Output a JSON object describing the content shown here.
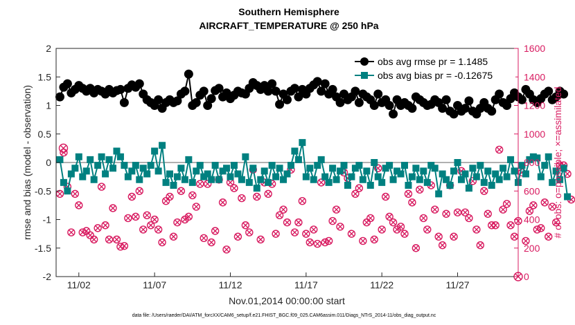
{
  "chart_data": {
    "type": "line",
    "title": "Southern Hemisphere",
    "subtitle": "AIRCRAFT_TEMPERATURE @ 250 hPa",
    "xlabel": "Nov.01,2014 00:00:00 start",
    "ylabel": "rmse and bias (model - observation)",
    "y2label": "# of obs: o=possible; ×=assimilated",
    "xlim": [
      0.5,
      31.0
    ],
    "ylim": [
      -2,
      2
    ],
    "y2lim": [
      0,
      1600
    ],
    "x_tick_labels": [
      "11/02",
      "11/07",
      "11/12",
      "11/17",
      "11/22",
      "11/27"
    ],
    "x_tick_values": [
      2,
      7,
      12,
      17,
      22,
      27
    ],
    "y_tick_values": [
      -2,
      -1.5,
      -1,
      -0.5,
      0,
      0.5,
      1,
      1.5,
      2
    ],
    "y_tick_labels": [
      "-2",
      "-1.5",
      "-1",
      "-0.5",
      "0",
      "0.5",
      "1",
      "1.5",
      "2"
    ],
    "y2_tick_values": [
      0,
      200,
      400,
      600,
      800,
      1000,
      1200,
      1400,
      1600
    ],
    "y2_tick_labels": [
      "0",
      "200",
      "400",
      "600",
      "800",
      "1000",
      "1200",
      "1400",
      "1600"
    ],
    "legend_position": "top-right",
    "grid": false,
    "zero_line": 0,
    "colors": {
      "rmse": "#000000",
      "bias": "#008080",
      "obs": "#d81b60",
      "zero": "#b0b0b0"
    },
    "time_step_days": 0.25,
    "x_start": 0.75,
    "series": [
      {
        "name": "obs avg rmse pr = 1.1485",
        "axis": "left",
        "marker": "circle",
        "values": [
          1.15,
          1.32,
          1.38,
          1.22,
          1.28,
          1.35,
          1.3,
          1.25,
          1.3,
          1.22,
          1.28,
          1.25,
          1.2,
          1.28,
          1.22,
          1.26,
          1.28,
          1.05,
          1.3,
          1.36,
          1.32,
          1.38,
          1.2,
          1.1,
          1.05,
          1.0,
          1.1,
          0.95,
          1.05,
          1.1,
          1.05,
          1.08,
          1.2,
          1.25,
          1.55,
          1.0,
          1.05,
          1.18,
          1.25,
          1.0,
          1.12,
          1.26,
          1.3,
          1.15,
          1.22,
          1.12,
          1.18,
          1.25,
          1.22,
          1.2,
          1.3,
          1.4,
          1.35,
          1.28,
          1.35,
          1.25,
          1.38,
          1.25,
          1.02,
          1.2,
          1.1,
          1.25,
          1.3,
          1.15,
          1.28,
          1.2,
          1.3,
          1.36,
          1.42,
          1.25,
          1.38,
          1.2,
          1.28,
          1.15,
          1.05,
          1.2,
          1.1,
          1.15,
          1.25,
          1.05,
          1.2,
          1.15,
          1.1,
          1.0,
          1.2,
          1.05,
          1.1,
          1.0,
          0.85,
          1.1,
          1.0,
          1.05,
          1.0,
          0.95,
          1.15,
          1.1,
          1.05,
          1.0,
          1.02,
          1.1,
          1.05,
          0.95,
          1.1,
          0.9,
          0.85,
          1.0,
          0.9,
          0.95,
          1.08,
          0.9,
          0.85,
          0.95,
          1.05,
          0.95,
          0.9,
          1.1,
          1.2,
          1.05,
          1.0,
          1.12,
          1.22,
          1.15,
          1.1,
          1.28,
          1.2,
          1.1,
          1.05,
          1.12,
          1.2,
          1.25,
          1.1,
          1.15,
          1.25,
          1.2
        ]
      },
      {
        "name": "obs avg bias pr = -0.12675",
        "axis": "left",
        "marker": "square",
        "values": [
          0.05,
          -0.35,
          -0.5,
          -0.2,
          -0.1,
          0.1,
          -0.25,
          -0.15,
          0.05,
          -0.3,
          -0.05,
          0.1,
          -0.2,
          0.05,
          -0.1,
          0.2,
          0.1,
          -0.05,
          -0.25,
          -0.15,
          -0.05,
          -0.3,
          -0.1,
          -0.2,
          -0.05,
          0.2,
          -0.15,
          0.3,
          -0.35,
          -0.2,
          -0.4,
          -0.25,
          -0.1,
          -0.3,
          0.05,
          -0.35,
          -0.15,
          -0.05,
          -0.25,
          -0.2,
          -0.3,
          -0.05,
          -0.3,
          -0.15,
          -0.1,
          -0.25,
          -0.05,
          -0.2,
          -0.3,
          0.1,
          -0.35,
          -0.1,
          -0.45,
          -0.3,
          -0.15,
          -0.35,
          -0.05,
          -0.25,
          -0.1,
          -0.3,
          -0.2,
          -0.05,
          0.2,
          0.05,
          0.35,
          -0.25,
          -0.1,
          -0.3,
          -0.05,
          0.05,
          -0.25,
          -0.35,
          -0.1,
          -0.3,
          -0.15,
          -0.05,
          -0.4,
          -0.25,
          -0.1,
          -0.05,
          -0.3,
          -0.15,
          -0.4,
          0.0,
          -0.25,
          -0.35,
          -0.1,
          -0.05,
          -0.3,
          -0.15,
          -0.2,
          -0.05,
          -0.4,
          -0.25,
          -0.1,
          -0.3,
          -0.15,
          -0.35,
          -0.05,
          -0.1,
          -0.55,
          -0.2,
          -0.3,
          -0.4,
          -0.15,
          0.0,
          -0.3,
          -0.2,
          -0.45,
          -0.1,
          -0.25,
          -0.05,
          -0.35,
          -0.15,
          -0.4,
          -0.2,
          -0.3,
          -0.1,
          -0.25,
          0.05,
          -0.15,
          -0.35,
          -0.05,
          -0.2,
          0.05,
          0.1,
          0.08,
          -0.25,
          -0.05,
          0.1,
          -0.35,
          -0.15,
          -0.3,
          -0.1,
          -0.6
        ]
      },
      {
        "name": "possible",
        "axis": "right",
        "marker": "circle-open",
        "values": [
          580,
          870,
          630,
          310,
          580,
          500,
          310,
          320,
          290,
          260,
          340,
          630,
          360,
          260,
          480,
          260,
          210,
          215,
          410,
          560,
          420,
          600,
          330,
          430,
          360,
          400,
          330,
          240,
          530,
          560,
          280,
          380,
          600,
          400,
          420,
          570,
          490,
          650,
          270,
          650,
          240,
          320,
          680,
          520,
          190,
          660,
          620,
          280,
          550,
          360,
          310,
          750,
          560,
          260,
          660,
          580,
          650,
          300,
          430,
          470,
          380,
          750,
          310,
          380,
          530,
          300,
          240,
          330,
          230,
          660,
          240,
          250,
          390,
          470,
          350,
          730,
          690,
          300,
          580,
          620,
          250,
          380,
          410,
          260,
          760,
          330,
          560,
          420,
          380,
          330,
          350,
          300,
          580,
          520,
          200,
          610,
          410,
          330,
          640,
          470,
          280,
          220,
          440,
          640,
          280,
          450,
          740,
          450,
          410,
          670,
          330,
          220,
          600,
          440,
          360,
          360,
          890,
          470,
          510,
          360,
          280,
          390,
          730,
          250,
          460,
          500,
          330,
          340,
          520,
          280,
          490,
          380,
          780,
          780,
          720,
          540
        ]
      },
      {
        "name": "assimilated",
        "axis": "right",
        "marker": "x",
        "values": [
          580,
          870,
          630,
          310,
          580,
          500,
          310,
          320,
          290,
          260,
          340,
          630,
          360,
          260,
          480,
          260,
          210,
          215,
          410,
          560,
          420,
          600,
          330,
          430,
          360,
          400,
          330,
          240,
          530,
          560,
          280,
          380,
          600,
          400,
          420,
          570,
          490,
          650,
          270,
          650,
          240,
          320,
          680,
          520,
          190,
          660,
          620,
          280,
          550,
          360,
          310,
          750,
          560,
          260,
          660,
          580,
          650,
          300,
          430,
          470,
          380,
          750,
          310,
          380,
          530,
          300,
          240,
          330,
          230,
          660,
          240,
          250,
          390,
          470,
          350,
          730,
          690,
          300,
          580,
          620,
          250,
          380,
          410,
          260,
          760,
          330,
          560,
          420,
          380,
          330,
          350,
          300,
          580,
          520,
          200,
          610,
          410,
          330,
          640,
          470,
          280,
          220,
          440,
          640,
          280,
          450,
          740,
          450,
          410,
          670,
          330,
          220,
          600,
          440,
          360,
          360,
          890,
          470,
          510,
          360,
          280,
          390,
          730,
          250,
          460,
          500,
          330,
          340,
          520,
          280,
          490,
          380,
          780,
          780,
          720,
          540
        ]
      }
    ],
    "extra_points": [
      {
        "series": "possible",
        "x": 0.98,
        "y2": 900
      },
      {
        "series": "possible",
        "x": 31.0,
        "y2": 0
      }
    ],
    "footnote": "data file: /Users/raeder/DAI/ATM_forcXX/CAM6_setup/f.e21.FHIST_BGC.f09_025.CAM6assim.011/Diags_NTrS_2014-11/obs_diag_output.nc"
  }
}
